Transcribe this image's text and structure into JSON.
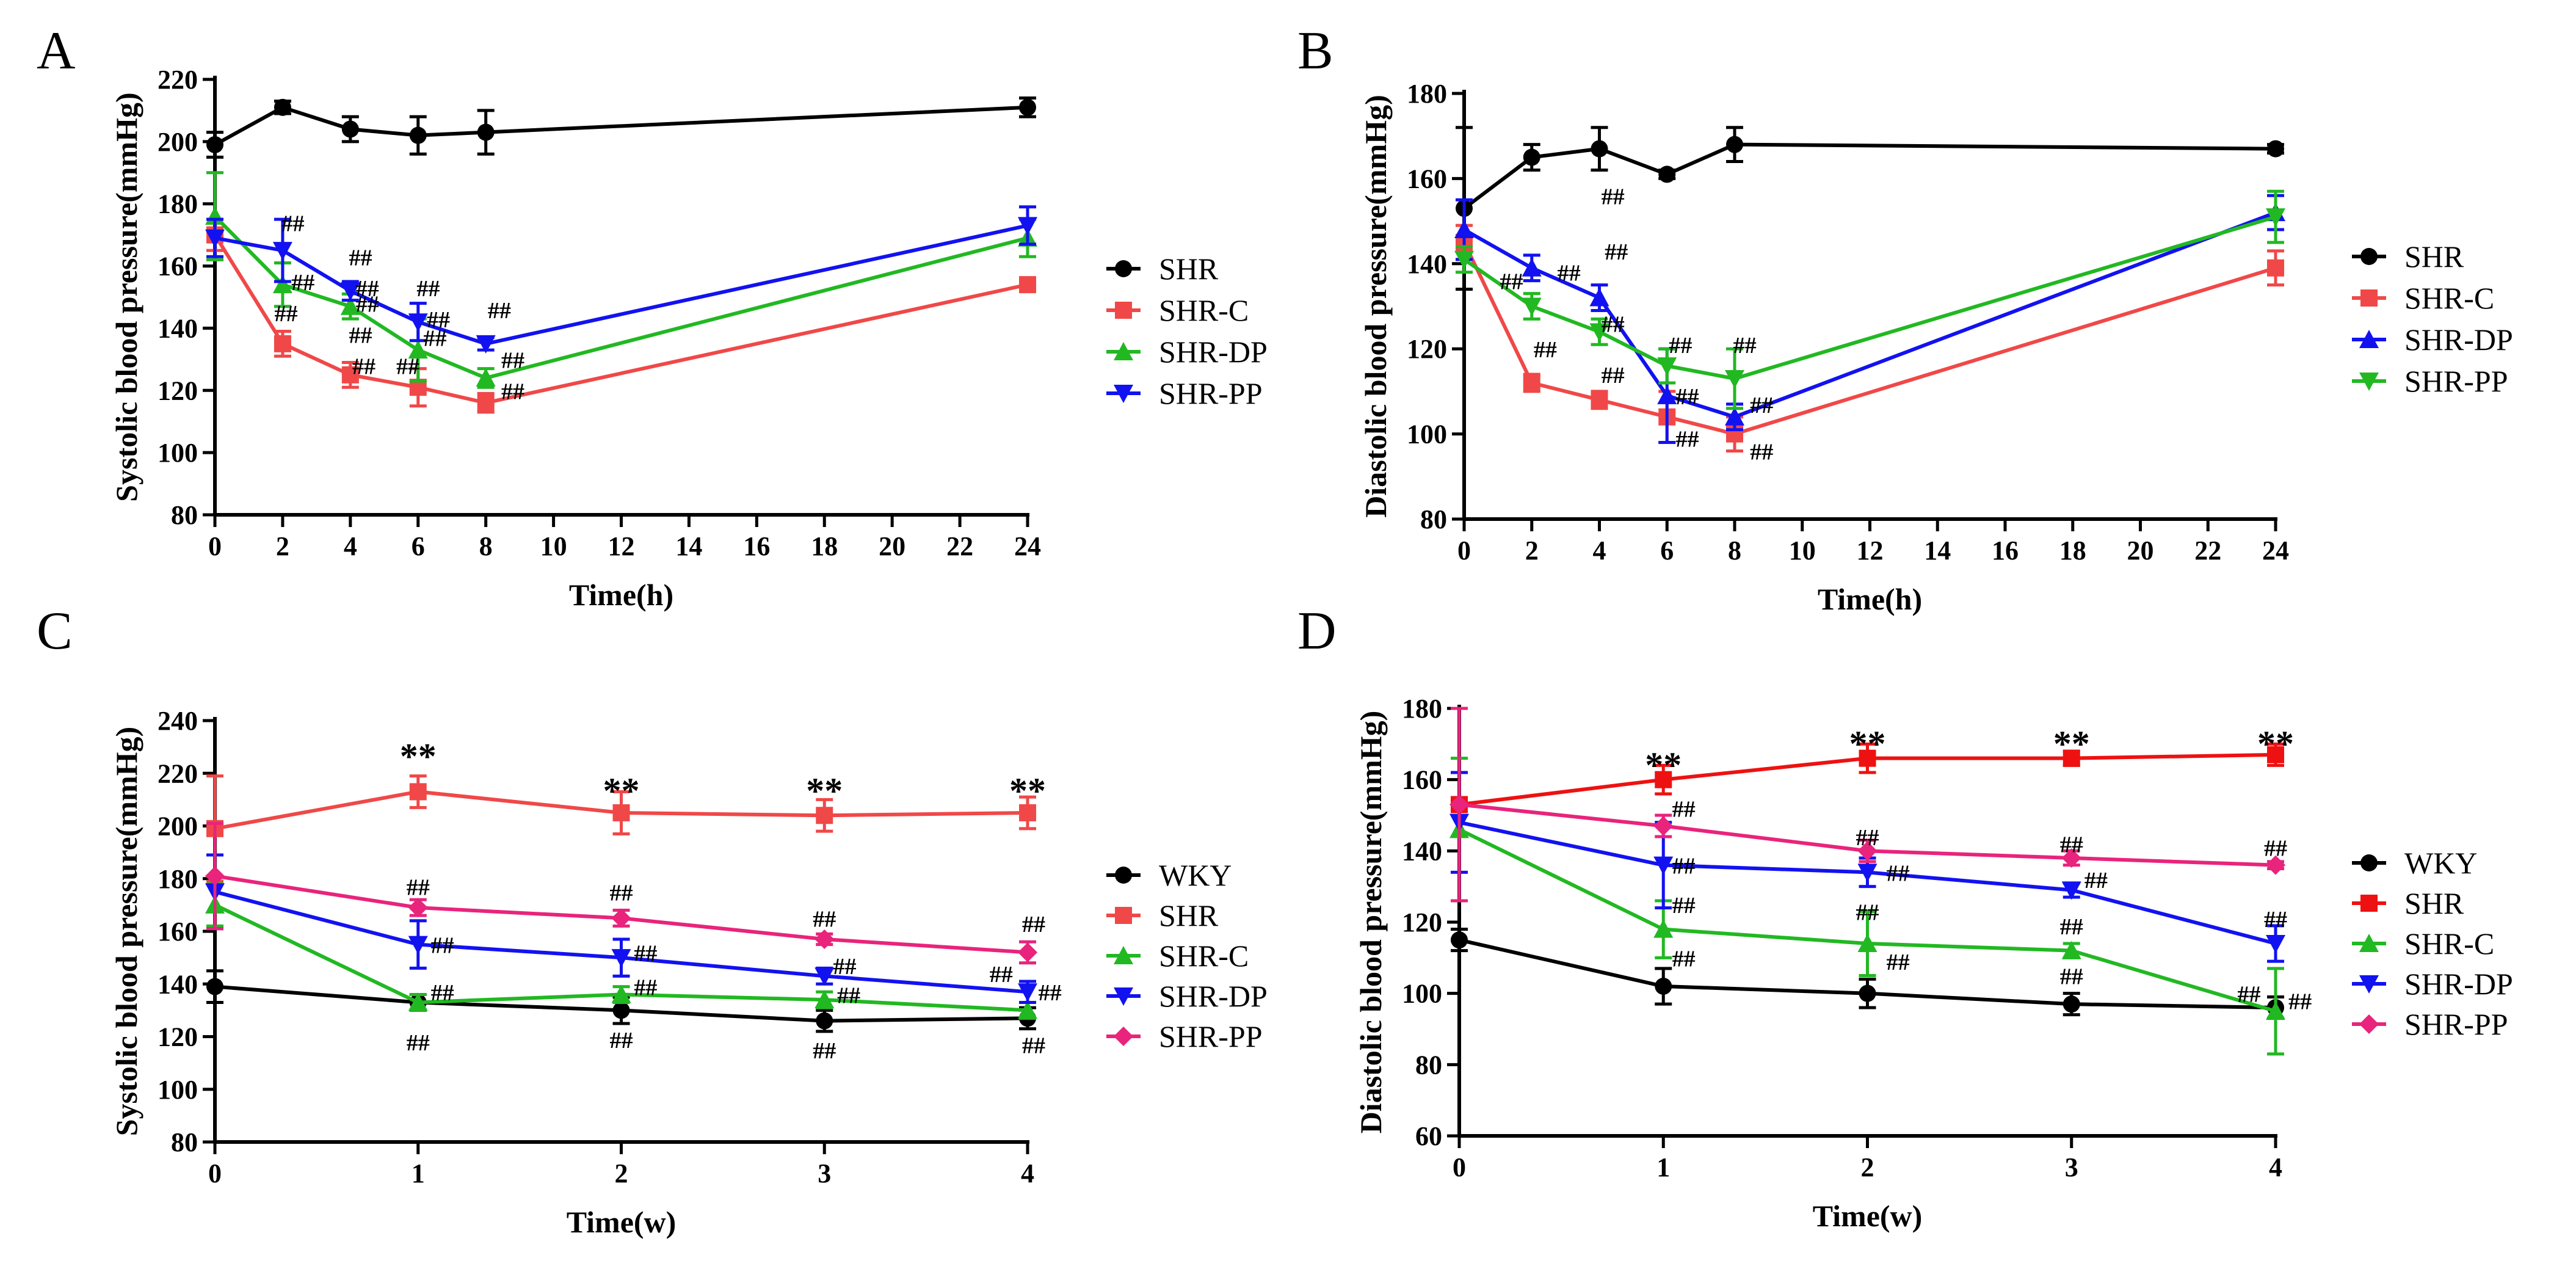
{
  "colors": {
    "black": "#000000",
    "red": "#f04848",
    "green": "#22b822",
    "blue": "#1212f0",
    "pink": "#e8247c",
    "red_d": "#ee1111"
  },
  "chart_data": [
    {
      "panel": "A",
      "type": "line",
      "xlabel": "Time(h)",
      "ylabel": "Systolic blood pressure(mmHg)",
      "xlim": [
        0,
        24
      ],
      "ylim": [
        80,
        220
      ],
      "xticks": [
        0,
        2,
        4,
        6,
        8,
        10,
        12,
        14,
        16,
        18,
        20,
        22,
        24
      ],
      "yticks": [
        80,
        100,
        120,
        140,
        160,
        180,
        200,
        220
      ],
      "legend": "right",
      "series": [
        {
          "name": "SHR",
          "color": "#000000",
          "marker": "circle",
          "x": [
            0,
            2,
            4,
            6,
            8,
            24
          ],
          "y": [
            199,
            211,
            204,
            202,
            203,
            211
          ],
          "err": [
            4,
            2,
            4,
            6,
            7,
            3
          ]
        },
        {
          "name": "SHR-C",
          "color": "#f04848",
          "marker": "square",
          "x": [
            0,
            2,
            4,
            6,
            8,
            24
          ],
          "y": [
            170,
            135,
            125,
            121,
            116,
            154
          ],
          "err": [
            5,
            4,
            4,
            6,
            3,
            2
          ]
        },
        {
          "name": "SHR-DP",
          "color": "#22b822",
          "marker": "triangle-up",
          "x": [
            0,
            2,
            4,
            6,
            8,
            24
          ],
          "y": [
            176,
            154,
            147,
            133,
            124,
            169
          ],
          "err": [
            14,
            7,
            4,
            10,
            3,
            6
          ]
        },
        {
          "name": "SHR-PP",
          "color": "#1212f0",
          "marker": "triangle-down",
          "x": [
            0,
            2,
            4,
            6,
            8,
            24
          ],
          "y": [
            169,
            165,
            152,
            142,
            135,
            173
          ],
          "err": [
            6,
            10,
            3,
            6,
            2,
            6
          ]
        }
      ],
      "annotations": [
        {
          "text": "##",
          "x": 2.3,
          "y": 174
        },
        {
          "text": "##",
          "x": 2.6,
          "y": 155
        },
        {
          "text": "##",
          "x": 2.1,
          "y": 145
        },
        {
          "text": "##",
          "x": 4.3,
          "y": 163
        },
        {
          "text": "##",
          "x": 4.5,
          "y": 153
        },
        {
          "text": "##",
          "x": 4.5,
          "y": 148
        },
        {
          "text": "##",
          "x": 4.3,
          "y": 138
        },
        {
          "text": "##",
          "x": 4.4,
          "y": 128
        },
        {
          "text": "##",
          "x": 6.3,
          "y": 153
        },
        {
          "text": "##",
          "x": 6.6,
          "y": 143
        },
        {
          "text": "##",
          "x": 6.5,
          "y": 137
        },
        {
          "text": "##",
          "x": 5.7,
          "y": 128
        },
        {
          "text": "##",
          "x": 8.4,
          "y": 146
        },
        {
          "text": "##",
          "x": 8.8,
          "y": 130
        },
        {
          "text": "##",
          "x": 8.8,
          "y": 120
        }
      ]
    },
    {
      "panel": "B",
      "type": "line",
      "xlabel": "Time(h)",
      "ylabel": "Diastolic blood pressure(mmHg)",
      "xlim": [
        0,
        24
      ],
      "ylim": [
        80,
        180
      ],
      "xticks": [
        0,
        2,
        4,
        6,
        8,
        10,
        12,
        14,
        16,
        18,
        20,
        22,
        24
      ],
      "yticks": [
        80,
        100,
        120,
        140,
        160,
        180
      ],
      "legend": "right",
      "series": [
        {
          "name": "SHR",
          "color": "#000000",
          "marker": "circle",
          "x": [
            0,
            2,
            4,
            6,
            8,
            24
          ],
          "y": [
            153,
            165,
            167,
            161,
            168,
            167
          ],
          "err": [
            19,
            3,
            5,
            1,
            4,
            1
          ]
        },
        {
          "name": "SHR-C",
          "color": "#f04848",
          "marker": "square",
          "x": [
            0,
            2,
            4,
            6,
            8,
            24
          ],
          "y": [
            145,
            112,
            108,
            104,
            100,
            139
          ],
          "err": [
            4,
            2,
            2,
            6,
            4,
            4
          ]
        },
        {
          "name": "SHR-DP",
          "color": "#1212f0",
          "marker": "triangle-up",
          "x": [
            0,
            2,
            4,
            6,
            8,
            24
          ],
          "y": [
            148,
            139,
            132,
            109,
            104,
            152
          ],
          "err": [
            7,
            3,
            3,
            11,
            3,
            4
          ]
        },
        {
          "name": "SHR-PP",
          "color": "#22b822",
          "marker": "triangle-down",
          "x": [
            0,
            2,
            4,
            6,
            8,
            24
          ],
          "y": [
            141,
            130,
            124,
            116,
            113,
            151
          ],
          "err": [
            3,
            3,
            3,
            4,
            7,
            6
          ]
        }
      ],
      "annotations": [
        {
          "text": "##",
          "x": 4.4,
          "y": 156
        },
        {
          "text": "##",
          "x": 1.4,
          "y": 136
        },
        {
          "text": "##",
          "x": 3.1,
          "y": 138
        },
        {
          "text": "##",
          "x": 4.5,
          "y": 143
        },
        {
          "text": "##",
          "x": 4.4,
          "y": 126
        },
        {
          "text": "##",
          "x": 2.4,
          "y": 120
        },
        {
          "text": "##",
          "x": 4.4,
          "y": 114
        },
        {
          "text": "##",
          "x": 6.4,
          "y": 121
        },
        {
          "text": "##",
          "x": 6.6,
          "y": 109
        },
        {
          "text": "##",
          "x": 6.6,
          "y": 99
        },
        {
          "text": "##",
          "x": 8.3,
          "y": 121
        },
        {
          "text": "##",
          "x": 8.8,
          "y": 107
        },
        {
          "text": "##",
          "x": 8.8,
          "y": 96
        }
      ]
    },
    {
      "panel": "C",
      "type": "line",
      "xlabel": "Time(w)",
      "ylabel": "Systolic blood pressure(mmHg)",
      "xlim": [
        0,
        4
      ],
      "ylim": [
        80,
        240
      ],
      "xticks": [
        0,
        1,
        2,
        3,
        4
      ],
      "yticks": [
        80,
        100,
        120,
        140,
        160,
        180,
        200,
        220,
        240
      ],
      "legend": "right",
      "series": [
        {
          "name": "WKY",
          "color": "#000000",
          "marker": "circle",
          "x": [
            0,
            1,
            2,
            3,
            4
          ],
          "y": [
            139,
            133,
            130,
            126,
            127
          ],
          "err": [
            6,
            3,
            5,
            4,
            4
          ]
        },
        {
          "name": "SHR",
          "color": "#f04848",
          "marker": "square",
          "x": [
            0,
            1,
            2,
            3,
            4
          ],
          "y": [
            199,
            213,
            205,
            204,
            205
          ],
          "err": [
            20,
            6,
            8,
            6,
            6
          ]
        },
        {
          "name": "SHR-C",
          "color": "#22b822",
          "marker": "triangle-up",
          "x": [
            0,
            1,
            2,
            3,
            4
          ],
          "y": [
            170,
            133,
            136,
            134,
            130
          ],
          "err": [
            8,
            3,
            3,
            3,
            3
          ]
        },
        {
          "name": "SHR-DP",
          "color": "#1212f0",
          "marker": "triangle-down",
          "x": [
            0,
            1,
            2,
            3,
            4
          ],
          "y": [
            175,
            155,
            150,
            143,
            137
          ],
          "err": [
            14,
            9,
            7,
            3,
            4
          ]
        },
        {
          "name": "SHR-PP",
          "color": "#e8247c",
          "marker": "diamond",
          "x": [
            0,
            1,
            2,
            3,
            4
          ],
          "y": [
            181,
            169,
            165,
            157,
            152
          ],
          "err": [
            20,
            3,
            3,
            2,
            4
          ]
        }
      ],
      "annotations": [
        {
          "text": "**",
          "x": 1.0,
          "y": 225
        },
        {
          "text": "**",
          "x": 2.0,
          "y": 212
        },
        {
          "text": "**",
          "x": 3.0,
          "y": 212
        },
        {
          "text": "**",
          "x": 4.0,
          "y": 212
        },
        {
          "text": "##",
          "x": 1.0,
          "y": 177
        },
        {
          "text": "##",
          "x": 1.12,
          "y": 155
        },
        {
          "text": "##",
          "x": 1.12,
          "y": 137
        },
        {
          "text": "##",
          "x": 1.0,
          "y": 118
        },
        {
          "text": "##",
          "x": 2.0,
          "y": 175
        },
        {
          "text": "##",
          "x": 2.12,
          "y": 152
        },
        {
          "text": "##",
          "x": 2.12,
          "y": 139
        },
        {
          "text": "##",
          "x": 2.0,
          "y": 119
        },
        {
          "text": "##",
          "x": 3.0,
          "y": 165
        },
        {
          "text": "##",
          "x": 3.1,
          "y": 147
        },
        {
          "text": "##",
          "x": 3.12,
          "y": 136
        },
        {
          "text": "##",
          "x": 3.0,
          "y": 115
        },
        {
          "text": "##",
          "x": 4.03,
          "y": 163
        },
        {
          "text": "##",
          "x": 3.87,
          "y": 144
        },
        {
          "text": "##",
          "x": 4.11,
          "y": 137
        },
        {
          "text": "##",
          "x": 4.03,
          "y": 117
        }
      ]
    },
    {
      "panel": "D",
      "type": "line",
      "xlabel": "Time(w)",
      "ylabel": "Diastolic blood pressure(mmHg)",
      "xlim": [
        0,
        4
      ],
      "ylim": [
        60,
        180
      ],
      "xticks": [
        0,
        1,
        2,
        3,
        4
      ],
      "yticks": [
        60,
        80,
        100,
        120,
        140,
        160,
        180
      ],
      "legend": "right",
      "series": [
        {
          "name": "WKY",
          "color": "#000000",
          "marker": "circle",
          "x": [
            0,
            1,
            2,
            3,
            4
          ],
          "y": [
            115,
            102,
            100,
            97,
            96
          ],
          "err": [
            3,
            5,
            4,
            3,
            3
          ]
        },
        {
          "name": "SHR",
          "color": "#ee1111",
          "marker": "square",
          "x": [
            0,
            1,
            2,
            3,
            4
          ],
          "y": [
            153,
            160,
            166,
            166,
            167
          ],
          "err": [
            27,
            4,
            4,
            2,
            3
          ]
        },
        {
          "name": "SHR-C",
          "color": "#22b822",
          "marker": "triangle-up",
          "x": [
            0,
            1,
            2,
            3,
            4
          ],
          "y": [
            146,
            118,
            114,
            112,
            95
          ],
          "err": [
            20,
            8,
            9,
            2,
            12
          ]
        },
        {
          "name": "SHR-DP",
          "color": "#1212f0",
          "marker": "triangle-down",
          "x": [
            0,
            1,
            2,
            3,
            4
          ],
          "y": [
            148,
            136,
            134,
            129,
            114
          ],
          "err": [
            14,
            12,
            4,
            2,
            5
          ]
        },
        {
          "name": "SHR-PP",
          "color": "#e8247c",
          "marker": "diamond",
          "x": [
            0,
            1,
            2,
            3,
            4
          ],
          "y": [
            153,
            147,
            140,
            138,
            136
          ],
          "err": [
            27,
            3,
            3,
            2,
            1
          ]
        }
      ],
      "annotations": [
        {
          "text": "**",
          "x": 1.0,
          "y": 163
        },
        {
          "text": "**",
          "x": 2.0,
          "y": 169
        },
        {
          "text": "**",
          "x": 3.0,
          "y": 169
        },
        {
          "text": "**",
          "x": 4.0,
          "y": 169
        },
        {
          "text": "##",
          "x": 1.1,
          "y": 152
        },
        {
          "text": "##",
          "x": 1.1,
          "y": 136
        },
        {
          "text": "##",
          "x": 1.1,
          "y": 125
        },
        {
          "text": "##",
          "x": 1.1,
          "y": 110
        },
        {
          "text": "##",
          "x": 2.0,
          "y": 144
        },
        {
          "text": "##",
          "x": 2.15,
          "y": 134
        },
        {
          "text": "##",
          "x": 2.0,
          "y": 123
        },
        {
          "text": "##",
          "x": 2.15,
          "y": 109
        },
        {
          "text": "##",
          "x": 3.0,
          "y": 142
        },
        {
          "text": "##",
          "x": 3.12,
          "y": 132
        },
        {
          "text": "##",
          "x": 3.0,
          "y": 119
        },
        {
          "text": "##",
          "x": 3.0,
          "y": 105
        },
        {
          "text": "##",
          "x": 4.0,
          "y": 141
        },
        {
          "text": "##",
          "x": 4.0,
          "y": 121
        },
        {
          "text": "##",
          "x": 3.87,
          "y": 100
        },
        {
          "text": "##",
          "x": 4.12,
          "y": 98
        }
      ]
    }
  ]
}
